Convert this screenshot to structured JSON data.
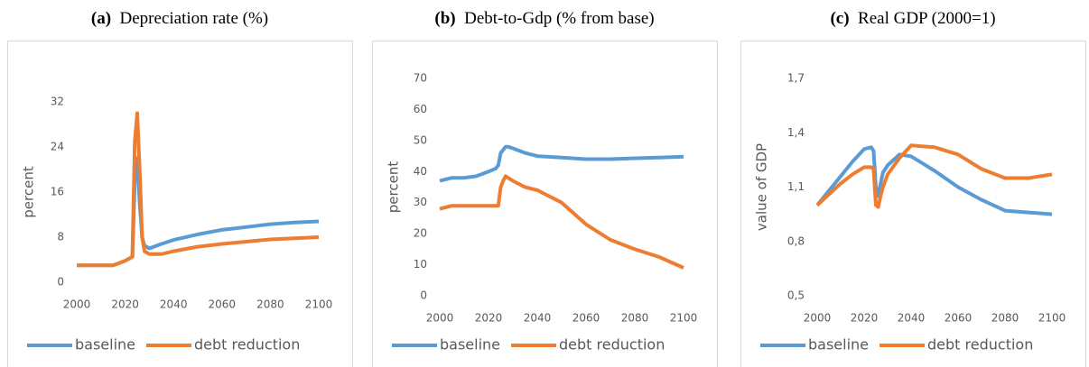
{
  "chart_data": [
    {
      "type": "line",
      "panel_label": "(a)",
      "title": "Depreciation rate (%)",
      "ylabel": "percent",
      "x": [
        2000,
        2005,
        2010,
        2015,
        2020,
        2023,
        2024,
        2025,
        2026,
        2027,
        2028,
        2030,
        2035,
        2040,
        2050,
        2060,
        2070,
        2080,
        2090,
        2100
      ],
      "series": [
        {
          "name": "baseline",
          "color": "#5b9bd5",
          "values": [
            3,
            3,
            3,
            3,
            3.8,
            4.5,
            18,
            22,
            14,
            8,
            6.5,
            6,
            6.8,
            7.5,
            8.5,
            9.3,
            9.8,
            10.3,
            10.6,
            10.8
          ]
        },
        {
          "name": "debt reduction",
          "color": "#ed7d31",
          "values": [
            3,
            3,
            3,
            3,
            3.8,
            4.5,
            25,
            30,
            20,
            8,
            5.5,
            5,
            5,
            5.5,
            6.3,
            6.8,
            7.2,
            7.6,
            7.8,
            8.0
          ]
        }
      ],
      "xlim": [
        2000,
        2100
      ],
      "xticks": [
        2000,
        2020,
        2040,
        2060,
        2080,
        2100
      ],
      "ylim": [
        0,
        32
      ],
      "yticks": [
        0,
        8,
        16,
        24,
        32
      ]
    },
    {
      "type": "line",
      "panel_label": "(b)",
      "title": "Debt-to-Gdp (% from base)",
      "ylabel": "percent",
      "x": [
        2000,
        2005,
        2010,
        2015,
        2020,
        2023,
        2024,
        2025,
        2026,
        2027,
        2028,
        2030,
        2035,
        2040,
        2050,
        2060,
        2070,
        2080,
        2090,
        2100
      ],
      "series": [
        {
          "name": "baseline",
          "color": "#5b9bd5",
          "values": [
            37,
            38,
            38,
            38.5,
            40,
            41,
            42,
            46,
            47,
            48,
            48,
            47.5,
            46,
            45,
            44.5,
            44,
            44,
            44.3,
            44.5,
            44.8
          ]
        },
        {
          "name": "debt reduction",
          "color": "#ed7d31",
          "values": [
            28,
            29,
            29,
            29,
            29,
            29,
            29,
            35,
            37,
            38.5,
            38,
            37,
            35,
            34,
            30,
            23,
            18,
            15,
            12.5,
            9
          ]
        }
      ],
      "xlim": [
        2000,
        2100
      ],
      "xticks": [
        2000,
        2020,
        2040,
        2060,
        2080,
        2100
      ],
      "ylim": [
        0,
        70
      ],
      "yticks": [
        0,
        10,
        20,
        30,
        40,
        50,
        60,
        70
      ]
    },
    {
      "type": "line",
      "panel_label": "(c)",
      "title": "Real GDP (2000=1)",
      "ylabel": "value of GDP",
      "x": [
        2000,
        2005,
        2010,
        2015,
        2020,
        2023,
        2024,
        2025,
        2026,
        2027,
        2028,
        2030,
        2035,
        2040,
        2050,
        2060,
        2070,
        2080,
        2090,
        2100
      ],
      "series": [
        {
          "name": "baseline",
          "color": "#5b9bd5",
          "values": [
            1.0,
            1.08,
            1.16,
            1.24,
            1.31,
            1.32,
            1.3,
            1.1,
            1.05,
            1.12,
            1.18,
            1.22,
            1.28,
            1.27,
            1.19,
            1.1,
            1.03,
            0.97,
            0.96,
            0.95
          ]
        },
        {
          "name": "debt reduction",
          "color": "#ed7d31",
          "values": [
            1.0,
            1.06,
            1.12,
            1.17,
            1.21,
            1.21,
            1.2,
            1.0,
            0.99,
            1.05,
            1.1,
            1.17,
            1.26,
            1.33,
            1.32,
            1.28,
            1.2,
            1.15,
            1.15,
            1.17
          ]
        }
      ],
      "xlim": [
        2000,
        2100
      ],
      "xticks": [
        2000,
        2020,
        2040,
        2060,
        2080,
        2100
      ],
      "ylim": [
        0.5,
        1.7
      ],
      "yticks": [
        {
          "value": 0.5,
          "label": "0,5"
        },
        {
          "value": 0.8,
          "label": "0,8"
        },
        {
          "value": 1.1,
          "label": "1,1"
        },
        {
          "value": 1.4,
          "label": "1,4"
        },
        {
          "value": 1.7,
          "label": "1,7"
        }
      ]
    }
  ]
}
